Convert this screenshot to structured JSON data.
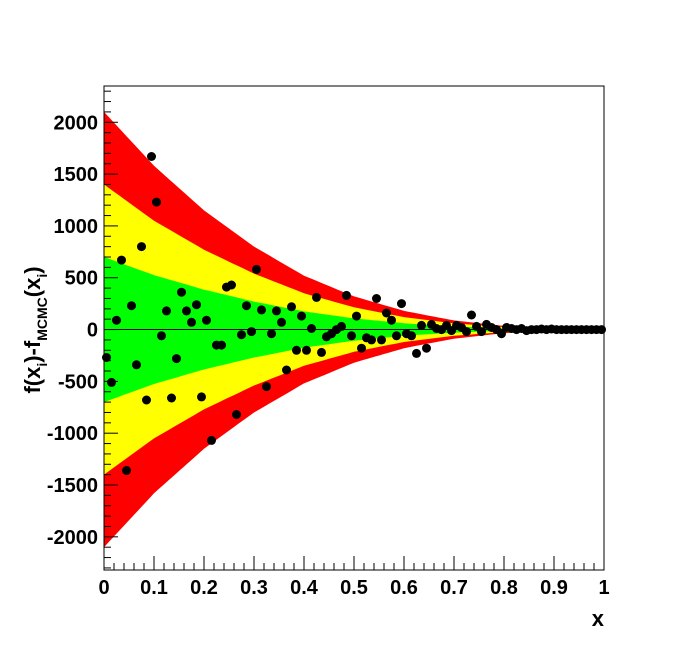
{
  "chart_data": {
    "type": "scatter",
    "xlabel": "x",
    "ylabel": {
      "p1": "f(x",
      "p1_sub": "i",
      "p2": ")-f",
      "p2_sub": "MCMC",
      "p3": "(x",
      "p3_sub": "i",
      "p4": ")"
    },
    "xlim": [
      0,
      1
    ],
    "ylim": [
      -2320,
      2350
    ],
    "xticks": [
      0,
      0.1,
      0.2,
      0.3,
      0.4,
      0.5,
      0.6,
      0.7,
      0.8,
      0.9,
      1
    ],
    "xtick_labels": [
      "0",
      "0.1",
      "0.2",
      "0.3",
      "0.4",
      "0.5",
      "0.6",
      "0.7",
      "0.8",
      "0.9",
      "1"
    ],
    "yticks": [
      -2000,
      -1500,
      -1000,
      -500,
      0,
      500,
      1000,
      1500,
      2000
    ],
    "ytick_labels": [
      "-2000",
      "-1500",
      "-1000",
      "-500",
      "0",
      "500",
      "1000",
      "1500",
      "2000"
    ],
    "grid": false,
    "zero_line": true,
    "bands": [
      {
        "sigma": 3,
        "color": "#ff0000",
        "halfwidth": [
          [
            0,
            2100
          ],
          [
            0.1,
            1580
          ],
          [
            0.2,
            1150
          ],
          [
            0.3,
            800
          ],
          [
            0.4,
            520
          ],
          [
            0.5,
            320
          ],
          [
            0.6,
            180
          ],
          [
            0.7,
            88
          ],
          [
            0.8,
            35
          ],
          [
            0.9,
            9
          ],
          [
            1,
            0
          ]
        ]
      },
      {
        "sigma": 2,
        "color": "#ffff00",
        "halfwidth": [
          [
            0,
            1400
          ],
          [
            0.1,
            1050
          ],
          [
            0.2,
            770
          ],
          [
            0.3,
            540
          ],
          [
            0.4,
            350
          ],
          [
            0.5,
            215
          ],
          [
            0.6,
            120
          ],
          [
            0.7,
            60
          ],
          [
            0.8,
            24
          ],
          [
            0.9,
            6
          ],
          [
            1,
            0
          ]
        ]
      },
      {
        "sigma": 1,
        "color": "#00ff00",
        "halfwidth": [
          [
            0,
            700
          ],
          [
            0.1,
            525
          ],
          [
            0.2,
            385
          ],
          [
            0.3,
            270
          ],
          [
            0.4,
            175
          ],
          [
            0.5,
            108
          ],
          [
            0.6,
            60
          ],
          [
            0.7,
            30
          ],
          [
            0.8,
            12
          ],
          [
            0.9,
            3
          ],
          [
            1,
            0
          ]
        ]
      }
    ],
    "series": [
      {
        "marker": "circle",
        "color": "#000000",
        "points": [
          [
            0.005,
            -270
          ],
          [
            0.015,
            -510
          ],
          [
            0.025,
            90
          ],
          [
            0.035,
            670
          ],
          [
            0.045,
            -1360
          ],
          [
            0.055,
            230
          ],
          [
            0.065,
            -340
          ],
          [
            0.075,
            800
          ],
          [
            0.085,
            -680
          ],
          [
            0.095,
            1670
          ],
          [
            0.105,
            1230
          ],
          [
            0.115,
            -60
          ],
          [
            0.125,
            180
          ],
          [
            0.135,
            -660
          ],
          [
            0.145,
            -280
          ],
          [
            0.155,
            360
          ],
          [
            0.165,
            180
          ],
          [
            0.175,
            70
          ],
          [
            0.185,
            240
          ],
          [
            0.195,
            -650
          ],
          [
            0.205,
            90
          ],
          [
            0.215,
            -1070
          ],
          [
            0.225,
            -150
          ],
          [
            0.235,
            -150
          ],
          [
            0.245,
            410
          ],
          [
            0.255,
            430
          ],
          [
            0.265,
            -820
          ],
          [
            0.275,
            -50
          ],
          [
            0.285,
            230
          ],
          [
            0.295,
            -20
          ],
          [
            0.305,
            580
          ],
          [
            0.315,
            190
          ],
          [
            0.325,
            -550
          ],
          [
            0.335,
            -40
          ],
          [
            0.345,
            180
          ],
          [
            0.355,
            70
          ],
          [
            0.365,
            -390
          ],
          [
            0.375,
            220
          ],
          [
            0.385,
            -200
          ],
          [
            0.395,
            130
          ],
          [
            0.405,
            -200
          ],
          [
            0.415,
            10
          ],
          [
            0.425,
            310
          ],
          [
            0.435,
            -220
          ],
          [
            0.445,
            -70
          ],
          [
            0.455,
            -40
          ],
          [
            0.465,
            0
          ],
          [
            0.475,
            30
          ],
          [
            0.485,
            330
          ],
          [
            0.495,
            -60
          ],
          [
            0.505,
            130
          ],
          [
            0.515,
            -180
          ],
          [
            0.525,
            -80
          ],
          [
            0.535,
            -100
          ],
          [
            0.545,
            300
          ],
          [
            0.555,
            -100
          ],
          [
            0.565,
            160
          ],
          [
            0.575,
            90
          ],
          [
            0.585,
            -60
          ],
          [
            0.595,
            250
          ],
          [
            0.605,
            -40
          ],
          [
            0.615,
            -60
          ],
          [
            0.625,
            -230
          ],
          [
            0.635,
            40
          ],
          [
            0.645,
            -180
          ],
          [
            0.655,
            50
          ],
          [
            0.665,
            10
          ],
          [
            0.675,
            0
          ],
          [
            0.685,
            40
          ],
          [
            0.695,
            -10
          ],
          [
            0.705,
            40
          ],
          [
            0.715,
            20
          ],
          [
            0.725,
            -20
          ],
          [
            0.735,
            140
          ],
          [
            0.745,
            30
          ],
          [
            0.755,
            -20
          ],
          [
            0.765,
            50
          ],
          [
            0.775,
            20
          ],
          [
            0.785,
            0
          ],
          [
            0.795,
            -40
          ],
          [
            0.805,
            20
          ],
          [
            0.815,
            10
          ],
          [
            0.825,
            0
          ],
          [
            0.835,
            10
          ],
          [
            0.845,
            -10
          ],
          [
            0.855,
            0
          ],
          [
            0.865,
            0
          ],
          [
            0.875,
            5
          ],
          [
            0.885,
            0
          ],
          [
            0.895,
            5
          ],
          [
            0.905,
            0
          ],
          [
            0.915,
            0
          ],
          [
            0.925,
            0
          ],
          [
            0.935,
            0
          ],
          [
            0.945,
            0
          ],
          [
            0.955,
            0
          ],
          [
            0.965,
            0
          ],
          [
            0.975,
            0
          ],
          [
            0.985,
            0
          ],
          [
            0.995,
            0
          ]
        ]
      }
    ]
  }
}
